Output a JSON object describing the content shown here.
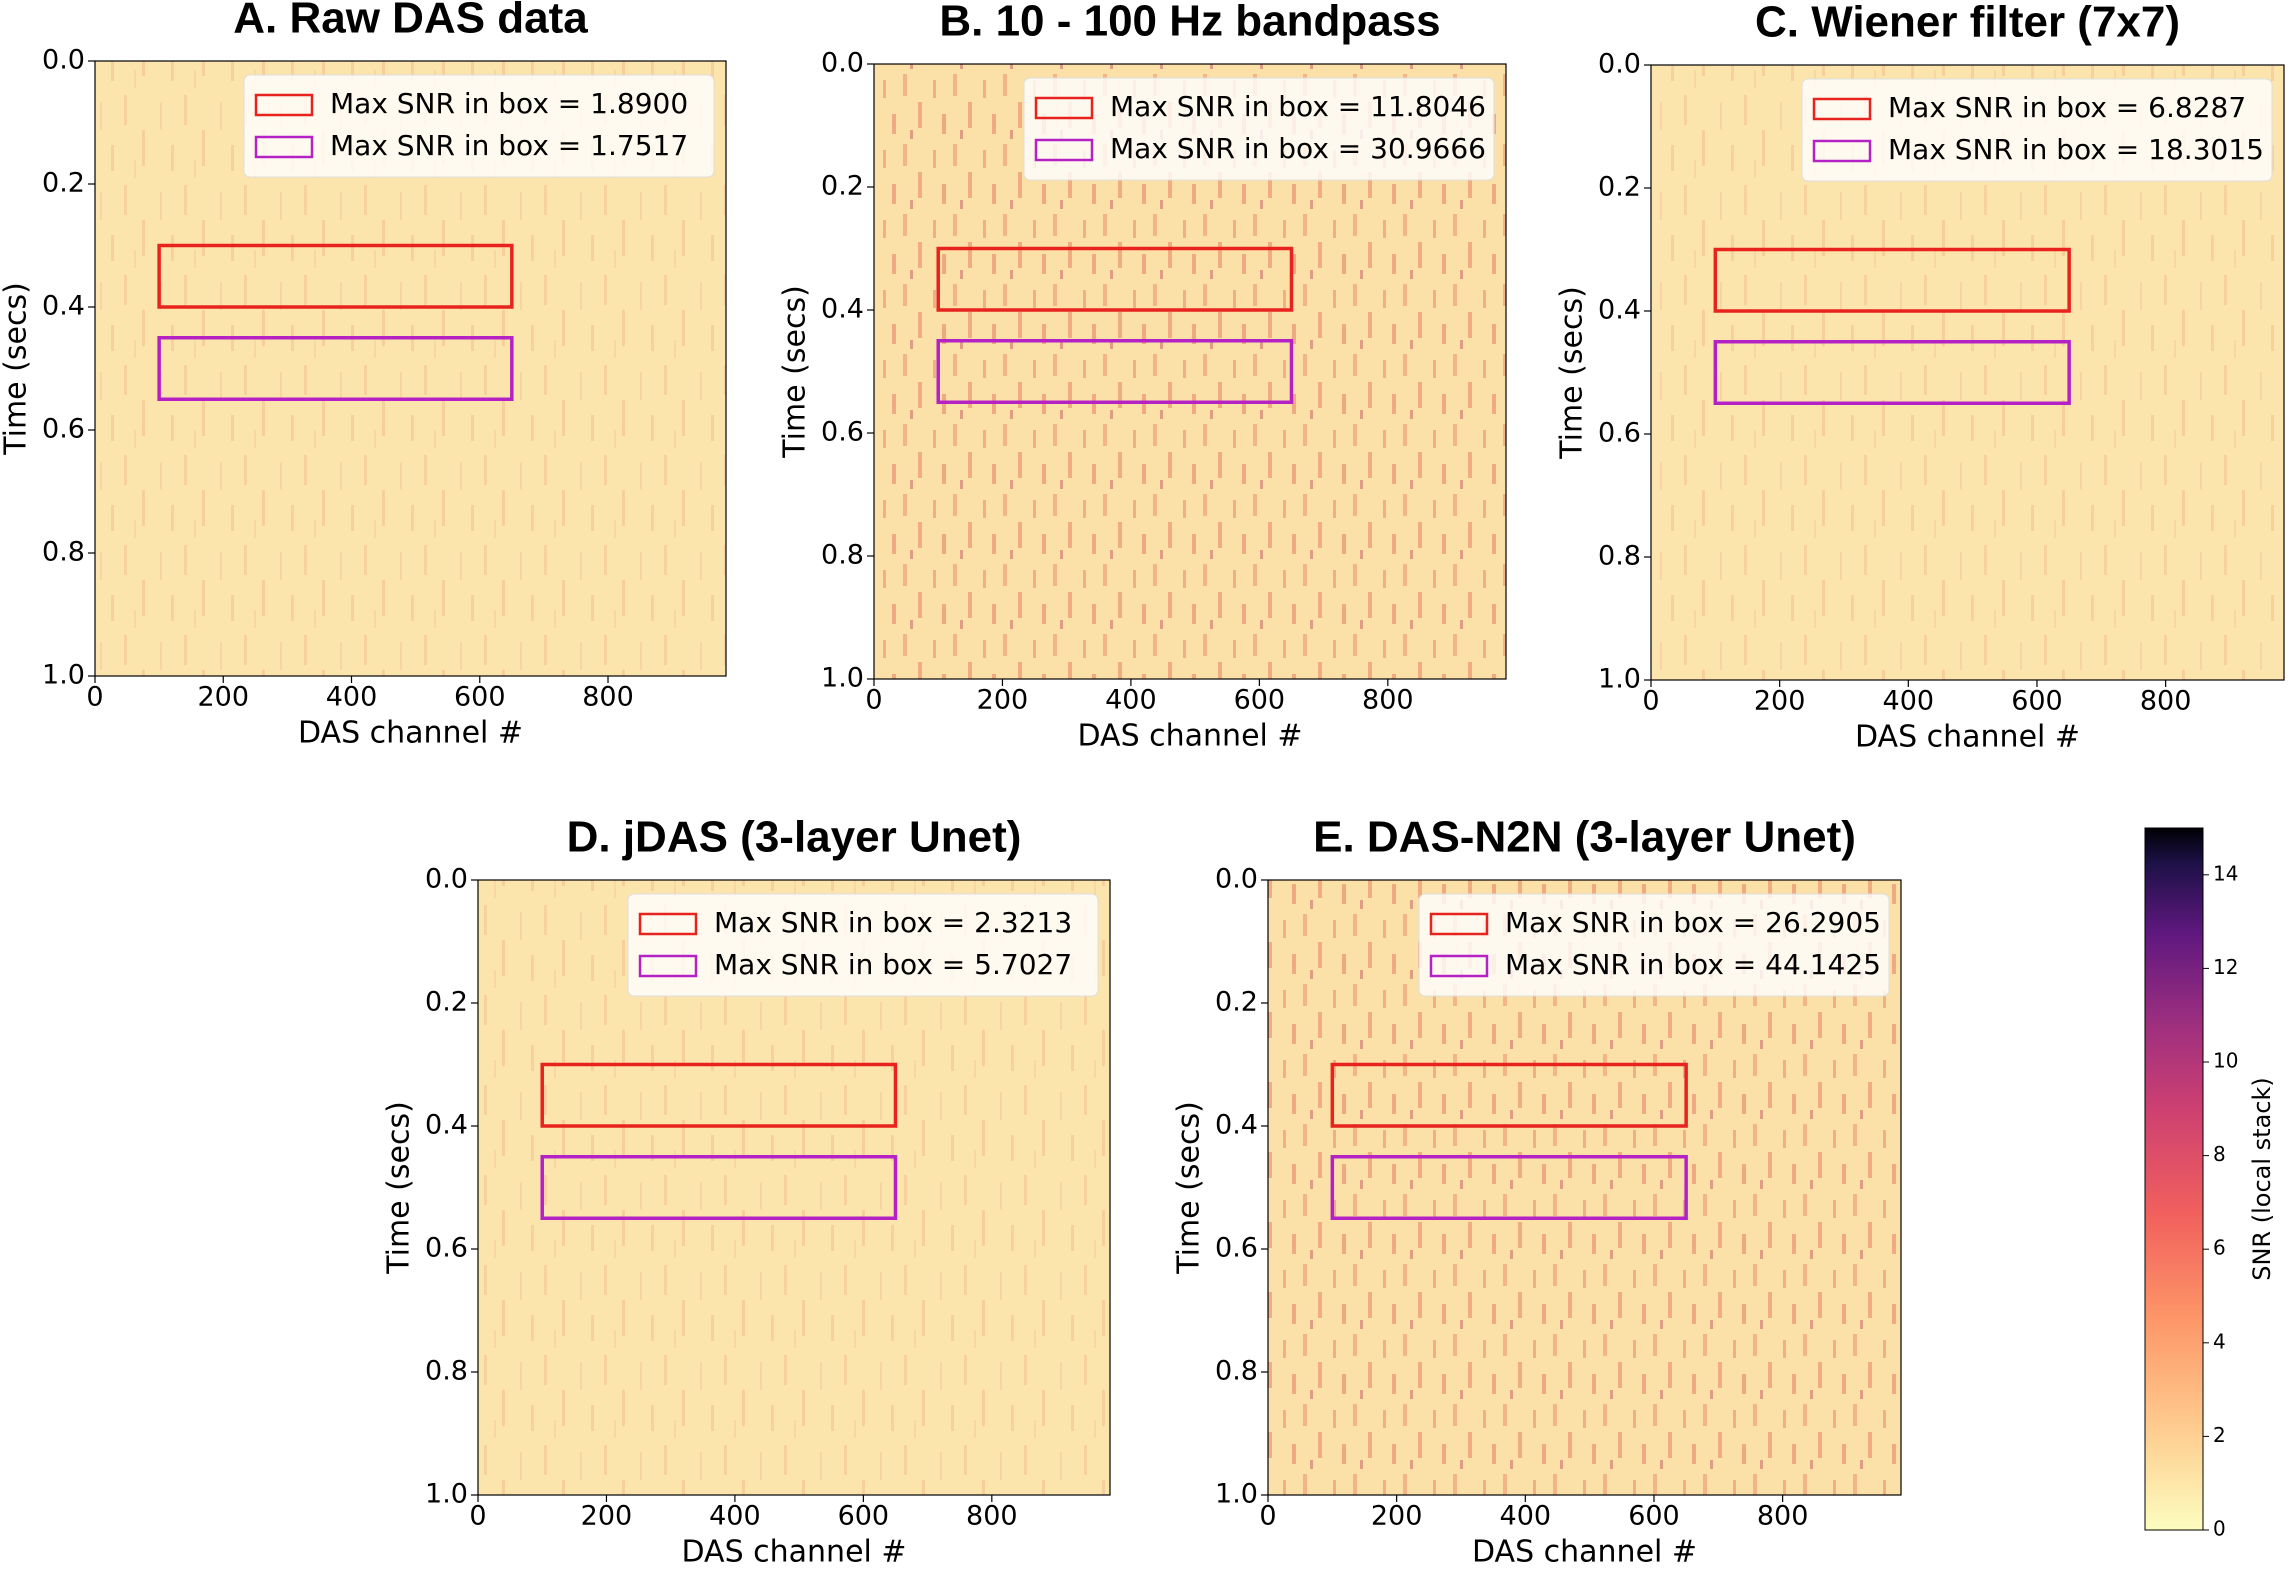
{
  "chart_data": [
    {
      "type": "heatmap",
      "title": "A. Raw DAS data",
      "x_label": "DAS channel #",
      "y_label": "Time (secs)",
      "xlim": [
        0,
        984
      ],
      "xticks": [
        0,
        200,
        400,
        600,
        800
      ],
      "ylim": [
        1.0,
        0.0
      ],
      "yticks": [
        {
          "value": 0.0,
          "label": "0.0"
        },
        {
          "value": 0.2,
          "label": "0.2"
        },
        {
          "value": 0.4,
          "label": "0.4"
        },
        {
          "value": 0.6,
          "label": "0.6"
        },
        {
          "value": 0.8,
          "label": "0.8"
        },
        {
          "value": 1.0,
          "label": "1.0"
        }
      ],
      "series": [
        {
          "name": "Max SNR in box = 1.8900",
          "color": "#e8231d",
          "x": [
            100,
            650
          ],
          "y": [
            0.3,
            0.4
          ]
        },
        {
          "name": "Max SNR in box = 1.7517",
          "color": "#b422c6",
          "x": [
            100,
            650
          ],
          "y": [
            0.45,
            0.55
          ]
        }
      ]
    },
    {
      "type": "heatmap",
      "title": "B. 10 - 100 Hz bandpass",
      "x_label": "DAS channel #",
      "y_label": "Time (secs)",
      "xlim": [
        0,
        984
      ],
      "xticks": [
        0,
        200,
        400,
        600,
        800
      ],
      "ylim": [
        1.0,
        0.0
      ],
      "yticks": [
        {
          "value": 0.0,
          "label": "0.0"
        },
        {
          "value": 0.2,
          "label": "0.2"
        },
        {
          "value": 0.4,
          "label": "0.4"
        },
        {
          "value": 0.6,
          "label": "0.6"
        },
        {
          "value": 0.8,
          "label": "0.8"
        },
        {
          "value": 1.0,
          "label": "1.0"
        }
      ],
      "series": [
        {
          "name": "Max SNR in box = 11.8046",
          "color": "#e8231d",
          "x": [
            100,
            650
          ],
          "y": [
            0.3,
            0.4
          ]
        },
        {
          "name": "Max SNR in box = 30.9666",
          "color": "#b422c6",
          "x": [
            100,
            650
          ],
          "y": [
            0.45,
            0.55
          ]
        }
      ]
    },
    {
      "type": "heatmap",
      "title": "C. Wiener filter (7x7)",
      "x_label": "DAS channel #",
      "y_label": "Time (secs)",
      "xlim": [
        0,
        984
      ],
      "xticks": [
        0,
        200,
        400,
        600,
        800
      ],
      "ylim": [
        1.0,
        0.0
      ],
      "yticks": [
        {
          "value": 0.0,
          "label": "0.0"
        },
        {
          "value": 0.2,
          "label": "0.2"
        },
        {
          "value": 0.4,
          "label": "0.4"
        },
        {
          "value": 0.6,
          "label": "0.6"
        },
        {
          "value": 0.8,
          "label": "0.8"
        },
        {
          "value": 1.0,
          "label": "1.0"
        }
      ],
      "series": [
        {
          "name": "Max SNR in box = 6.8287",
          "color": "#e8231d",
          "x": [
            100,
            650
          ],
          "y": [
            0.3,
            0.4
          ]
        },
        {
          "name": "Max SNR in box = 18.3015",
          "color": "#b422c6",
          "x": [
            100,
            650
          ],
          "y": [
            0.45,
            0.55
          ]
        }
      ]
    },
    {
      "type": "heatmap",
      "title": "D. jDAS (3-layer Unet)",
      "x_label": "DAS channel #",
      "y_label": "Time (secs)",
      "xlim": [
        0,
        984
      ],
      "xticks": [
        0,
        200,
        400,
        600,
        800
      ],
      "ylim": [
        1.0,
        0.0
      ],
      "yticks": [
        {
          "value": 0.0,
          "label": "0.0"
        },
        {
          "value": 0.2,
          "label": "0.2"
        },
        {
          "value": 0.4,
          "label": "0.4"
        },
        {
          "value": 0.6,
          "label": "0.6"
        },
        {
          "value": 0.8,
          "label": "0.8"
        },
        {
          "value": 1.0,
          "label": "1.0"
        }
      ],
      "series": [
        {
          "name": "Max SNR in box = 2.3213",
          "color": "#e8231d",
          "x": [
            100,
            650
          ],
          "y": [
            0.3,
            0.4
          ]
        },
        {
          "name": "Max SNR in box = 5.7027",
          "color": "#b422c6",
          "x": [
            100,
            650
          ],
          "y": [
            0.45,
            0.55
          ]
        }
      ]
    },
    {
      "type": "heatmap",
      "title": "E. DAS-N2N (3-layer Unet)",
      "x_label": "DAS channel #",
      "y_label": "Time (secs)",
      "xlim": [
        0,
        984
      ],
      "xticks": [
        0,
        200,
        400,
        600,
        800
      ],
      "ylim": [
        1.0,
        0.0
      ],
      "yticks": [
        {
          "value": 0.0,
          "label": "0.0"
        },
        {
          "value": 0.2,
          "label": "0.2"
        },
        {
          "value": 0.4,
          "label": "0.4"
        },
        {
          "value": 0.6,
          "label": "0.6"
        },
        {
          "value": 0.8,
          "label": "0.8"
        },
        {
          "value": 1.0,
          "label": "1.0"
        }
      ],
      "series": [
        {
          "name": "Max SNR in box = 26.2905",
          "color": "#e8231d",
          "x": [
            100,
            650
          ],
          "y": [
            0.3,
            0.4
          ]
        },
        {
          "name": "Max SNR in box = 44.1425",
          "color": "#b422c6",
          "x": [
            100,
            650
          ],
          "y": [
            0.45,
            0.55
          ]
        }
      ]
    },
    {
      "type": "colorbar",
      "y_label": "SNR (local stack)",
      "ylim": [
        0,
        15
      ],
      "yticks": [
        0,
        2,
        4,
        6,
        8,
        10,
        12,
        14
      ]
    }
  ]
}
